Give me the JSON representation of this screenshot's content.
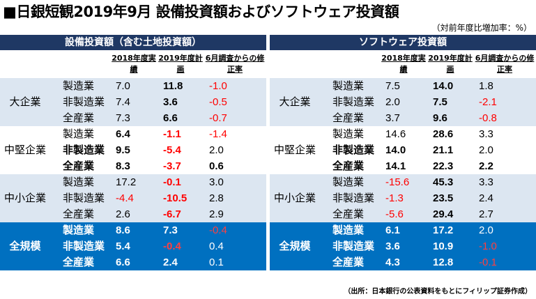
{
  "title": "■日銀短観2019年9月 設備投資額およびソフトウェア投資額",
  "unit_note": "（対前年度比増加率：%）",
  "source_note": "（出所：日本銀行の公表資料をもとにフィリップ証券作成）",
  "panels": [
    {
      "title": "設備投資額（含む土地投資額）",
      "headers": [
        "2018年度実績",
        "2019年度計画",
        "6月調査からの修正率"
      ],
      "groups": [
        {
          "name": "大企業",
          "rows": [
            {
              "label": "製造業",
              "v": [
                "7.0",
                "11.8",
                "-1.0"
              ]
            },
            {
              "label": "非製造業",
              "v": [
                "7.4",
                "3.6",
                "-0.5"
              ]
            },
            {
              "label": "全産業",
              "v": [
                "7.3",
                "6.6",
                "-0.7"
              ]
            }
          ]
        },
        {
          "name": "中堅企業",
          "rows": [
            {
              "label": "製造業",
              "v": [
                "6.4",
                "-1.1",
                "-1.4"
              ]
            },
            {
              "label": "非製造業",
              "v": [
                "9.5",
                "-5.4",
                "2.0"
              ]
            },
            {
              "label": "全産業",
              "v": [
                "8.3",
                "-3.7",
                "0.6"
              ]
            }
          ]
        },
        {
          "name": "中小企業",
          "rows": [
            {
              "label": "製造業",
              "v": [
                "17.2",
                "-0.1",
                "3.0"
              ]
            },
            {
              "label": "非製造業",
              "v": [
                "-4.4",
                "-10.5",
                "2.8"
              ]
            },
            {
              "label": "全産業",
              "v": [
                "2.6",
                "-6.7",
                "2.9"
              ]
            }
          ]
        },
        {
          "name": "全規模",
          "rows": [
            {
              "label": "製造業",
              "v": [
                "8.6",
                "7.3",
                "-0.4"
              ]
            },
            {
              "label": "非製造業",
              "v": [
                "5.4",
                "-0.4",
                "0.4"
              ]
            },
            {
              "label": "全産業",
              "v": [
                "6.6",
                "2.4",
                "0.1"
              ]
            }
          ]
        }
      ]
    },
    {
      "title": "ソフトウェア投資額",
      "headers": [
        "2018年度実績",
        "2019年度計画",
        "6月調査からの修正率"
      ],
      "groups": [
        {
          "name": "大企業",
          "rows": [
            {
              "label": "製造業",
              "v": [
                "7.5",
                "14.0",
                "1.8"
              ]
            },
            {
              "label": "非製造業",
              "v": [
                "2.0",
                "7.5",
                "-2.1"
              ]
            },
            {
              "label": "全産業",
              "v": [
                "3.7",
                "9.6",
                "-0.8"
              ]
            }
          ]
        },
        {
          "name": "中堅企業",
          "rows": [
            {
              "label": "製造業",
              "v": [
                "14.6",
                "28.6",
                "3.3"
              ]
            },
            {
              "label": "非製造業",
              "v": [
                "14.0",
                "21.1",
                "2.0"
              ]
            },
            {
              "label": "全産業",
              "v": [
                "14.1",
                "22.3",
                "2.2"
              ]
            }
          ]
        },
        {
          "name": "中小企業",
          "rows": [
            {
              "label": "製造業",
              "v": [
                "-15.6",
                "45.3",
                "3.3"
              ]
            },
            {
              "label": "非製造業",
              "v": [
                "-1.3",
                "23.5",
                "2.4"
              ]
            },
            {
              "label": "全産業",
              "v": [
                "-5.6",
                "29.4",
                "2.7"
              ]
            }
          ]
        },
        {
          "name": "全規模",
          "rows": [
            {
              "label": "製造業",
              "v": [
                "6.1",
                "17.2",
                "2.0"
              ]
            },
            {
              "label": "非製造業",
              "v": [
                "3.6",
                "10.9",
                "-1.0"
              ]
            },
            {
              "label": "全産業",
              "v": [
                "4.3",
                "12.8",
                "-0.1"
              ]
            }
          ]
        }
      ]
    }
  ],
  "colors": {
    "banner": "#1f3864",
    "band_light": "#dce6f1",
    "band_total": "#0070c0",
    "negative": "#ff0000"
  }
}
